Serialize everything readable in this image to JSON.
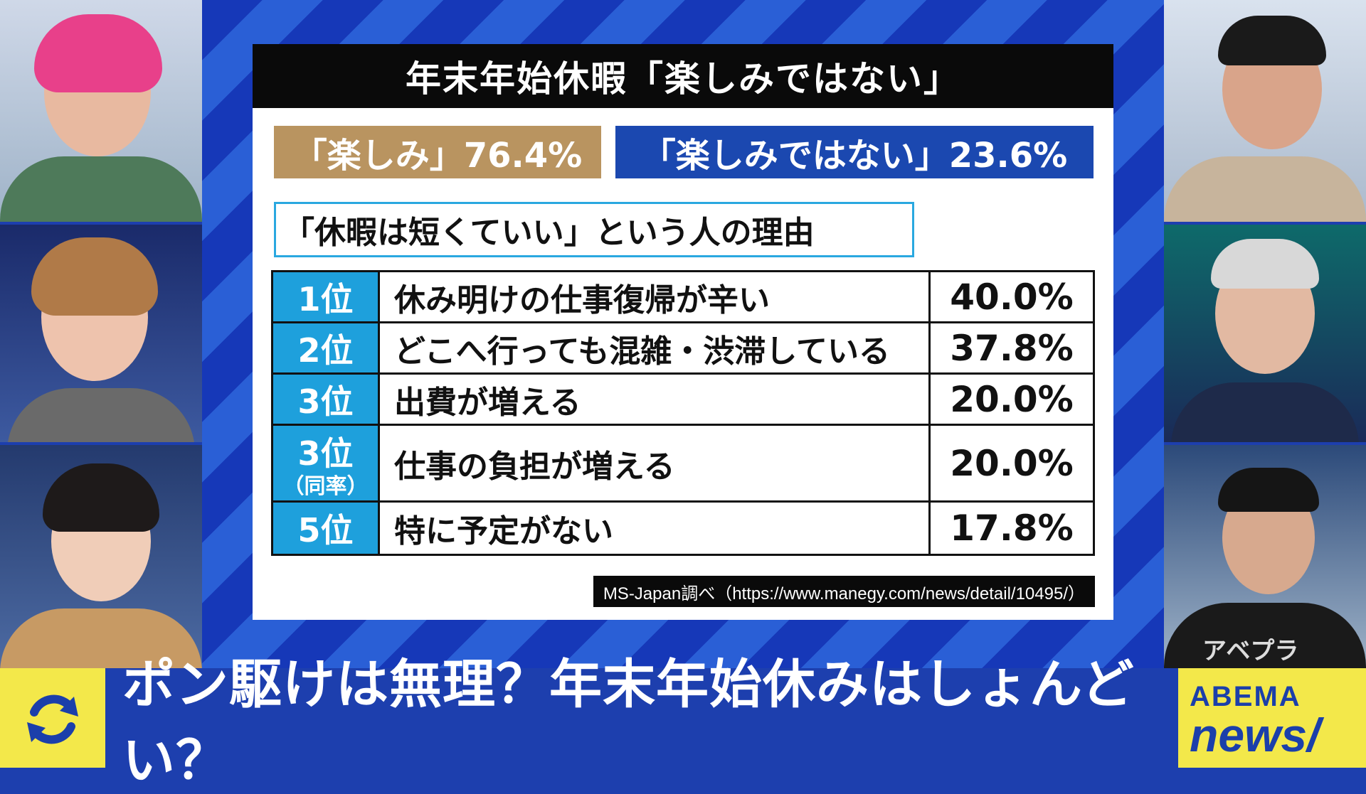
{
  "card": {
    "title": "年末年始休暇「楽しみではない」",
    "pill_enjoy": "「楽しみ」76.4%",
    "pill_not_enjoy": "「楽しみではない」23.6%",
    "subtitle": "「休暇は短くていい」という人の理由",
    "rows": [
      {
        "rank": "1位",
        "rank_sub": "",
        "reason": "休み明けの仕事復帰が辛い",
        "pct": "40.0%"
      },
      {
        "rank": "2位",
        "rank_sub": "",
        "reason": "どこへ行っても混雑・渋滞している",
        "pct": "37.8%"
      },
      {
        "rank": "3位",
        "rank_sub": "",
        "reason": "出費が増える",
        "pct": "20.0%"
      },
      {
        "rank": "3位",
        "rank_sub": "（同率）",
        "reason": "仕事の負担が増える",
        "pct": "20.0%"
      },
      {
        "rank": "5位",
        "rank_sub": "",
        "reason": "特に予定がない",
        "pct": "17.8%"
      }
    ],
    "source": "MS-Japan調べ（https://www.manegy.com/news/detail/10495/）"
  },
  "ticker": {
    "headline": "ポン駆けは無理？年末年始休みはしょんどい？"
  },
  "logo": {
    "line1": "ABEMA",
    "line2": "news/"
  },
  "watermark": "アベプラ",
  "colors": {
    "gold": "#b99460",
    "blue": "#1b48b0",
    "rank_cyan": "#1ea0dc",
    "ticker_yellow": "#f3e84a",
    "ticker_blue": "#1d3fae"
  }
}
